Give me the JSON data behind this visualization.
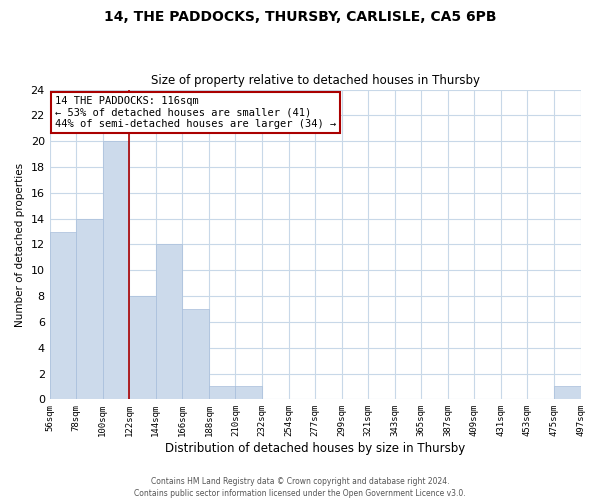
{
  "title1": "14, THE PADDOCKS, THURSBY, CARLISLE, CA5 6PB",
  "title2": "Size of property relative to detached houses in Thursby",
  "xlabel": "Distribution of detached houses by size in Thursby",
  "ylabel": "Number of detached properties",
  "bin_labels": [
    "56sqm",
    "78sqm",
    "100sqm",
    "122sqm",
    "144sqm",
    "166sqm",
    "188sqm",
    "210sqm",
    "232sqm",
    "254sqm",
    "277sqm",
    "299sqm",
    "321sqm",
    "343sqm",
    "365sqm",
    "387sqm",
    "409sqm",
    "431sqm",
    "453sqm",
    "475sqm",
    "497sqm"
  ],
  "bar_heights": [
    13,
    14,
    20,
    8,
    12,
    7,
    1,
    1,
    0,
    0,
    0,
    0,
    0,
    0,
    0,
    0,
    0,
    0,
    0,
    1,
    0
  ],
  "bar_color": "#ccdaeb",
  "bar_edge_color": "#a8bedb",
  "annotation_title": "14 THE PADDOCKS: 116sqm",
  "annotation_line1": "← 53% of detached houses are smaller (41)",
  "annotation_line2": "44% of semi-detached houses are larger (34) →",
  "annotation_box_color": "#ffffff",
  "annotation_box_edge": "#aa0000",
  "ylim": [
    0,
    24
  ],
  "yticks": [
    0,
    2,
    4,
    6,
    8,
    10,
    12,
    14,
    16,
    18,
    20,
    22,
    24
  ],
  "vline_color": "#aa0000",
  "footer1": "Contains HM Land Registry data © Crown copyright and database right 2024.",
  "footer2": "Contains public sector information licensed under the Open Government Licence v3.0.",
  "bg_color": "#ffffff",
  "grid_color": "#c8d8e8"
}
